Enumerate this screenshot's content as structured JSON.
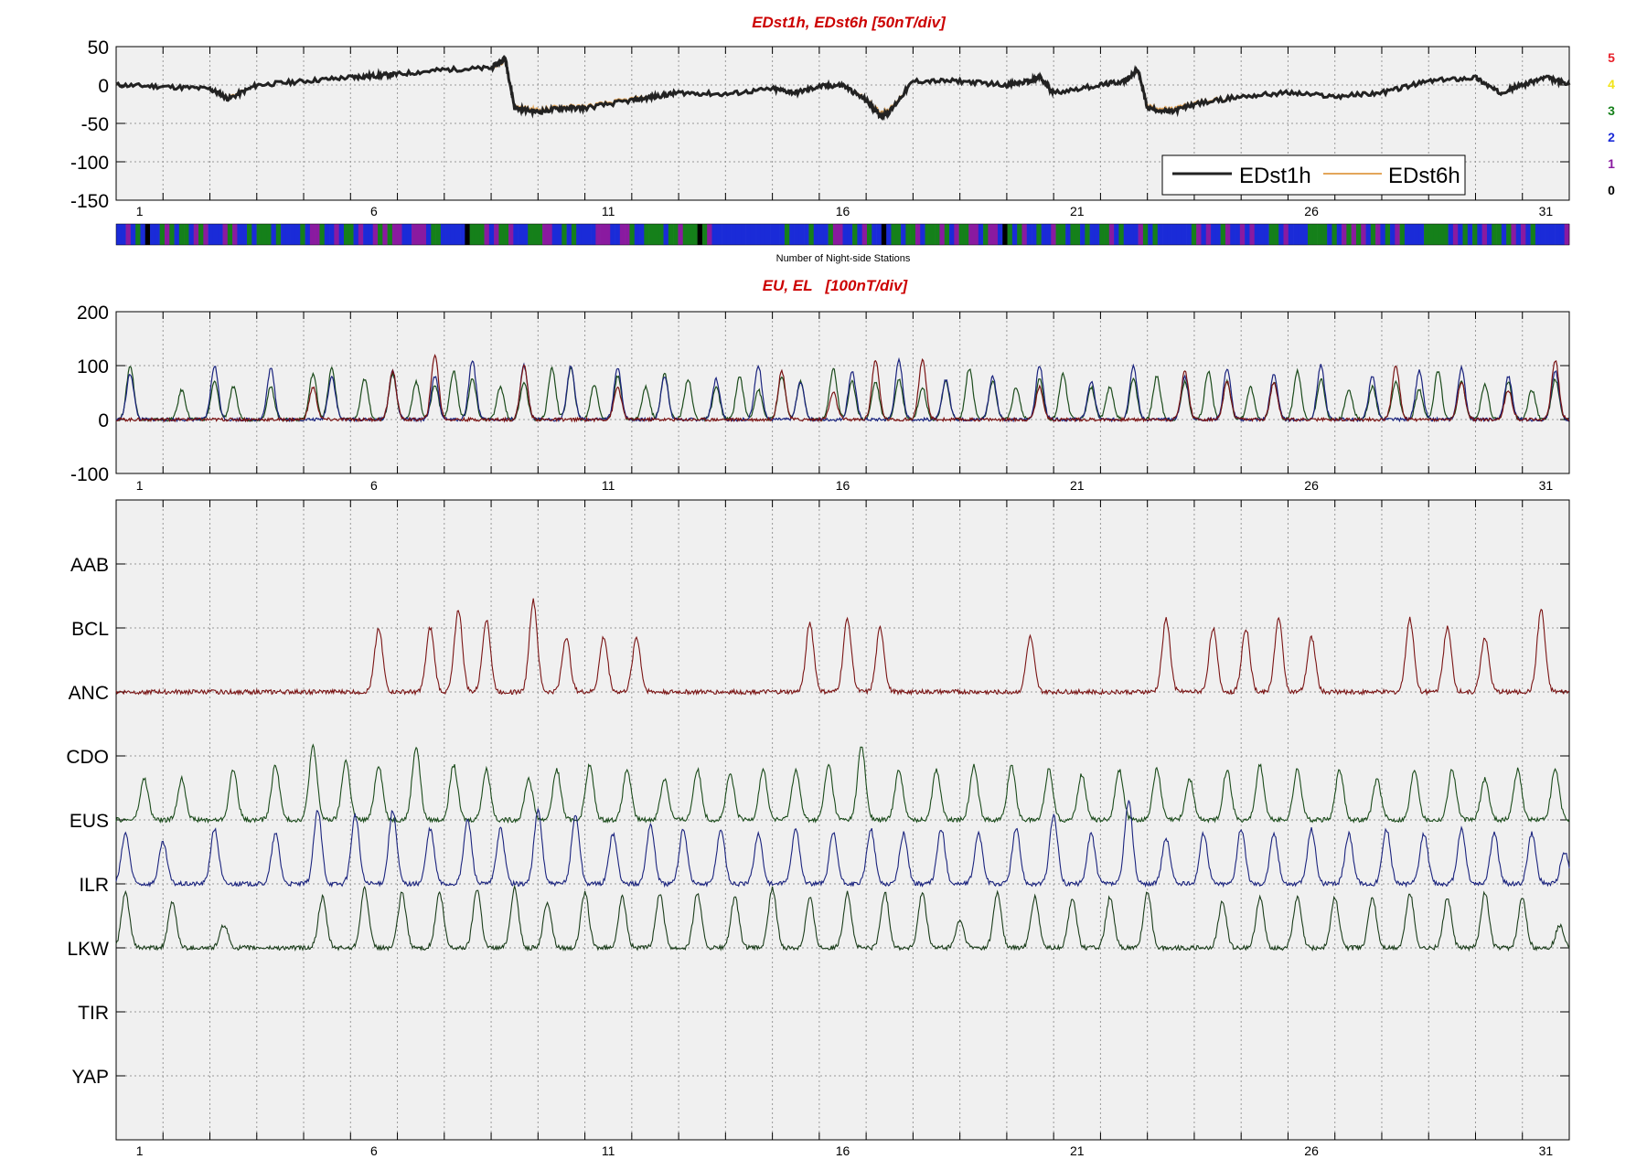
{
  "chart_data": [
    {
      "type": "line",
      "title": "EDst1h, EDst6h [50nT/div]",
      "ylim": [
        -150,
        50
      ],
      "yticks": [
        "50",
        "0",
        "-50",
        "-100",
        "-150"
      ],
      "xlim": [
        0,
        31
      ],
      "xticks": [
        "1",
        "6",
        "11",
        "16",
        "21",
        "26",
        "31"
      ],
      "grid": true,
      "legend": {
        "placement": "bottom-right",
        "entries": [
          "EDst1h",
          "EDst6h"
        ]
      },
      "series": [
        {
          "name": "EDst1h",
          "color": "#222222",
          "x": [
            0,
            1,
            2,
            2.4,
            3,
            4,
            5,
            5.5,
            6,
            7,
            8,
            8.3,
            8.5,
            9,
            9.5,
            10,
            11,
            11.5,
            12,
            13,
            14,
            14.5,
            15,
            15.5,
            16,
            16.3,
            16.5,
            17,
            18,
            19,
            19.5,
            19.7,
            20,
            21,
            21.5,
            21.8,
            22,
            22.5,
            23,
            24,
            25,
            26,
            27,
            28,
            29,
            29.5,
            30,
            30.5,
            31
          ],
          "y": [
            0,
            -2,
            -5,
            -18,
            0,
            5,
            10,
            12,
            14,
            20,
            22,
            35,
            -30,
            -35,
            -30,
            -30,
            -20,
            -15,
            -10,
            -12,
            -5,
            -10,
            -2,
            0,
            -20,
            -40,
            -35,
            5,
            5,
            0,
            5,
            10,
            -10,
            0,
            5,
            20,
            -30,
            -35,
            -25,
            -15,
            -10,
            -15,
            -10,
            5,
            10,
            -10,
            0,
            10,
            0
          ]
        },
        {
          "name": "EDst6h",
          "color": "#e3a65a",
          "x": [
            0,
            1,
            2,
            2.4,
            3,
            4,
            5,
            5.5,
            6,
            7,
            8,
            8.3,
            8.5,
            9,
            9.5,
            10,
            11,
            11.5,
            12,
            13,
            14,
            14.5,
            15,
            15.5,
            16,
            16.3,
            16.5,
            17,
            18,
            19,
            19.5,
            19.7,
            20,
            21,
            21.5,
            21.8,
            22,
            22.5,
            23,
            24,
            25,
            26,
            27,
            28,
            29,
            29.5,
            30,
            30.5,
            31
          ],
          "y": [
            0,
            -2,
            -5,
            -16,
            0,
            5,
            10,
            12,
            14,
            20,
            22,
            32,
            -28,
            -32,
            -28,
            -28,
            -18,
            -14,
            -10,
            -12,
            -5,
            -9,
            -2,
            0,
            -18,
            -36,
            -32,
            5,
            5,
            0,
            5,
            9,
            -9,
            0,
            5,
            18,
            -27,
            -32,
            -23,
            -14,
            -10,
            -14,
            -9,
            5,
            9,
            -9,
            0,
            9,
            0
          ]
        }
      ]
    },
    {
      "type": "heatmap",
      "xlabel": "Number of Night-side Stations",
      "scale": [
        {
          "label": "5",
          "color": "#e8202a"
        },
        {
          "label": "4",
          "color": "#f2e418"
        },
        {
          "label": "3",
          "color": "#15801a"
        },
        {
          "label": "2",
          "color": "#1a2bd8"
        },
        {
          "label": "1",
          "color": "#8a1aa0"
        },
        {
          "label": "0",
          "color": "#000000"
        }
      ]
    },
    {
      "type": "line",
      "title": "EU, EL   [100nT/div]",
      "ylim": [
        -100,
        200
      ],
      "yticks": [
        "200",
        "100",
        "0",
        "-100"
      ],
      "xlim": [
        0,
        31
      ],
      "xticks": [
        "1",
        "6",
        "11",
        "16",
        "21",
        "26",
        "31"
      ],
      "grid": true,
      "peak_days": [
        0.3,
        1.4,
        2.1,
        2.5,
        3.3,
        4.2,
        4.6,
        5.3,
        5.9,
        6.4,
        6.8,
        7.2,
        7.6,
        8.2,
        8.7,
        9.3,
        9.7,
        10.2,
        10.7,
        11.3,
        11.7,
        12.2,
        12.8,
        13.3,
        13.7,
        14.2,
        14.6,
        15.3,
        15.7,
        16.2,
        16.7,
        17.2,
        17.7,
        18.2,
        18.7,
        19.2,
        19.7,
        20.2,
        20.8,
        21.2,
        21.7,
        22.2,
        22.8,
        23.3,
        23.7,
        24.2,
        24.7,
        25.2,
        25.7,
        26.3,
        26.8,
        27.3,
        27.8,
        28.2,
        28.7,
        29.2,
        29.7,
        30.2,
        30.7
      ],
      "series": [
        {
          "name": "",
          "color": "#1b4b1b",
          "peaks": [
            100,
            55,
            70,
            60,
            60,
            85,
            95,
            75,
            85,
            70,
            65,
            90,
            75,
            60,
            70,
            95,
            95,
            65,
            80,
            60,
            85,
            75,
            60,
            80,
            55,
            80,
            70,
            95,
            70,
            70,
            75,
            60,
            70,
            95,
            70,
            60,
            75,
            85,
            60,
            60,
            75,
            80,
            70,
            90,
            70,
            60,
            70,
            90,
            75,
            55,
            60,
            70,
            55,
            90,
            70,
            65,
            70,
            55,
            75
          ]
        },
        {
          "name": "",
          "color": "#1a237e",
          "peaks": [
            85,
            0,
            100,
            0,
            95,
            0,
            80,
            0,
            90,
            0,
            80,
            0,
            110,
            0,
            100,
            0,
            100,
            0,
            95,
            0,
            80,
            0,
            75,
            0,
            100,
            0,
            70,
            0,
            90,
            0,
            110,
            0,
            75,
            0,
            80,
            0,
            100,
            0,
            70,
            0,
            100,
            0,
            80,
            0,
            95,
            0,
            85,
            0,
            100,
            0,
            80,
            0,
            90,
            0,
            95,
            0,
            80,
            0,
            90
          ]
        },
        {
          "name": "",
          "color": "#7a1414",
          "peaks": [
            0,
            0,
            0,
            0,
            0,
            60,
            0,
            0,
            90,
            0,
            120,
            0,
            0,
            0,
            100,
            0,
            0,
            0,
            60,
            0,
            0,
            0,
            0,
            0,
            0,
            90,
            0,
            50,
            0,
            110,
            0,
            110,
            0,
            0,
            0,
            0,
            60,
            0,
            0,
            0,
            0,
            0,
            90,
            0,
            70,
            0,
            70,
            0,
            0,
            0,
            0,
            100,
            0,
            0,
            70,
            0,
            55,
            0,
            110
          ]
        }
      ]
    },
    {
      "type": "line",
      "xlim": [
        0,
        31
      ],
      "xticks": [
        "1",
        "6",
        "11",
        "16",
        "21",
        "26",
        "31"
      ],
      "grid": true,
      "stations": [
        "AAB",
        "BCL",
        "ANC",
        "CDO",
        "EUS",
        "ILR",
        "LKW",
        "TIR",
        "YAP"
      ],
      "traces": [
        {
          "station": "ANC",
          "color": "#7a1414",
          "peak_days": [
            5.6,
            6.7,
            7.3,
            7.9,
            8.9,
            9.6,
            10.4,
            11.1,
            14.8,
            15.6,
            16.3,
            19.5,
            22.4,
            23.4,
            24.1,
            24.8,
            25.5,
            27.6,
            28.4,
            29.2,
            30.4
          ],
          "peaks": [
            70,
            70,
            90,
            80,
            100,
            60,
            60,
            60,
            75,
            80,
            70,
            60,
            80,
            70,
            70,
            80,
            60,
            80,
            70,
            60,
            90
          ]
        },
        {
          "station": "EUS",
          "color": "#1b4b1b",
          "peak_days": [
            0.6,
            1.4,
            2.5,
            3.4,
            4.2,
            4.9,
            5.6,
            6.4,
            7.2,
            7.9,
            8.8,
            9.4,
            10.1,
            10.9,
            11.7,
            12.4,
            13.1,
            13.8,
            14.5,
            15.2,
            15.9,
            16.7,
            17.5,
            18.3,
            19.1,
            19.9,
            20.6,
            21.4,
            22.2,
            22.9,
            23.7,
            24.4,
            25.2,
            26.1,
            26.9,
            27.7,
            28.5,
            29.2,
            29.9,
            30.7
          ],
          "peaks": [
            45,
            45,
            55,
            60,
            80,
            65,
            60,
            80,
            60,
            55,
            45,
            55,
            60,
            55,
            45,
            55,
            50,
            55,
            55,
            60,
            80,
            55,
            55,
            60,
            60,
            55,
            50,
            55,
            55,
            45,
            55,
            60,
            55,
            55,
            45,
            55,
            55,
            45,
            55,
            55
          ]
        },
        {
          "station": "ILR",
          "color": "#1a237e",
          "peak_days": [
            0.2,
            1.0,
            2.1,
            3.4,
            4.3,
            5.1,
            5.9,
            6.7,
            7.5,
            8.2,
            9.0,
            9.8,
            10.6,
            11.4,
            12.1,
            12.9,
            13.7,
            14.5,
            15.3,
            16.1,
            16.8,
            17.6,
            18.4,
            19.2,
            20.0,
            20.8,
            21.6,
            22.4,
            23.2,
            24.0,
            24.7,
            25.5,
            26.3,
            27.1,
            27.9,
            28.7,
            29.4,
            30.2,
            30.9
          ],
          "peaks": [
            55,
            45,
            60,
            55,
            80,
            75,
            80,
            60,
            70,
            60,
            80,
            75,
            55,
            65,
            60,
            60,
            55,
            60,
            55,
            60,
            55,
            60,
            55,
            60,
            75,
            55,
            90,
            50,
            55,
            60,
            55,
            60,
            55,
            60,
            55,
            60,
            55,
            55,
            35
          ]
        },
        {
          "station": "LKW",
          "color": "#1b3d1b",
          "peak_days": [
            0.2,
            1.2,
            2.3,
            3.5,
            4.4,
            5.3,
            6.1,
            6.9,
            7.7,
            8.5,
            9.2,
            10.0,
            10.8,
            11.6,
            12.4,
            13.2,
            14.0,
            14.8,
            15.6,
            16.4,
            17.2,
            18.0,
            18.8,
            19.6,
            20.4,
            21.2,
            22.0,
            22.8,
            23.6,
            24.4,
            25.2,
            26.0,
            26.8,
            27.6,
            28.4,
            29.2,
            30.0,
            30.8
          ],
          "peaks": [
            60,
            50,
            25,
            0,
            55,
            65,
            60,
            60,
            65,
            65,
            50,
            60,
            55,
            60,
            60,
            55,
            65,
            55,
            60,
            60,
            60,
            30,
            60,
            55,
            55,
            55,
            60,
            0,
            50,
            55,
            55,
            55,
            55,
            60,
            55,
            60,
            55,
            25
          ]
        }
      ]
    }
  ]
}
